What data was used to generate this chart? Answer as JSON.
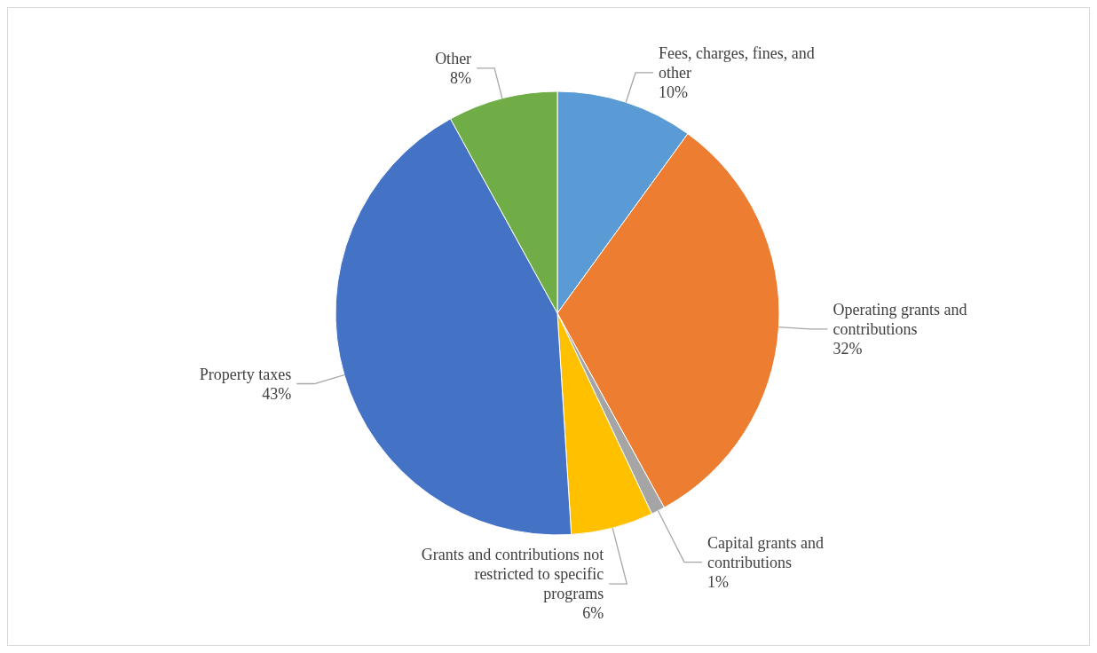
{
  "chart_data": {
    "type": "pie",
    "categories": [
      "Fees, charges, fines, and other",
      "Operating grants and contributions",
      "Capital grants and contributions",
      "Grants and contributions not restricted to specific programs",
      "Property taxes",
      "Other"
    ],
    "values": [
      10,
      32,
      1,
      6,
      43,
      8
    ],
    "value_labels": [
      "10%",
      "32%",
      "1%",
      "6%",
      "43%",
      "8%"
    ],
    "colors": [
      "#5b9bd5",
      "#ed7d31",
      "#a5a5a5",
      "#ffc000",
      "#4472c4",
      "#70ad47"
    ]
  }
}
